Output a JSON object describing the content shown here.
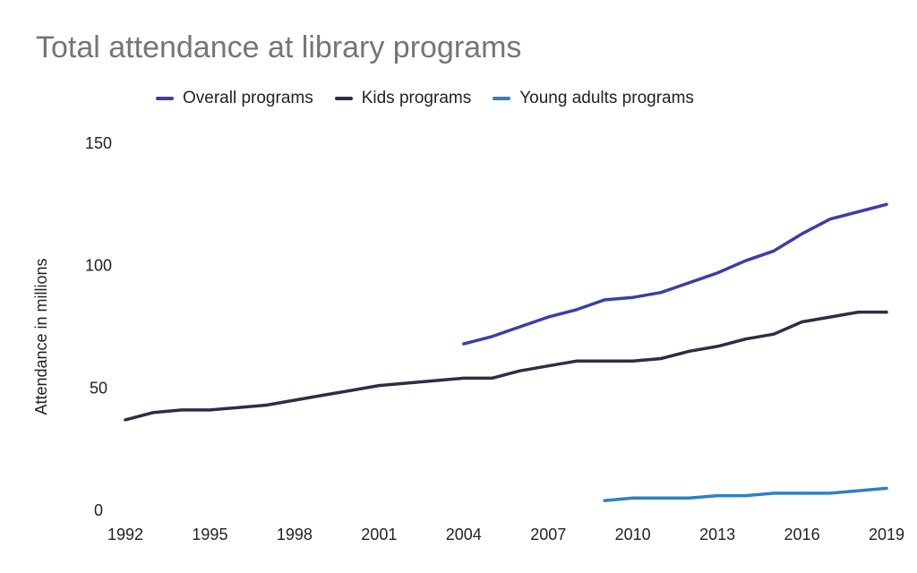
{
  "chart_data": {
    "type": "line",
    "title": "Total attendance at library programs",
    "ylabel": "Attendance in millions",
    "xlabel": "",
    "xlim": [
      1992,
      2019
    ],
    "ylim": [
      0,
      150
    ],
    "x_ticks": [
      1992,
      1995,
      1998,
      2001,
      2004,
      2007,
      2010,
      2013,
      2016,
      2019
    ],
    "y_ticks": [
      0,
      50,
      100,
      150
    ],
    "grid": false,
    "legend_position": "top",
    "series": [
      {
        "name": "Overall programs",
        "color": "#3b3ea8",
        "x": [
          2004,
          2005,
          2006,
          2007,
          2008,
          2009,
          2010,
          2011,
          2012,
          2013,
          2014,
          2015,
          2016,
          2017,
          2018,
          2019
        ],
        "y": [
          68,
          71,
          75,
          79,
          82,
          86,
          87,
          89,
          93,
          97,
          102,
          106,
          113,
          119,
          122,
          125
        ]
      },
      {
        "name": "Kids programs",
        "color": "#2e2d44",
        "x": [
          1992,
          1993,
          1994,
          1995,
          1996,
          1997,
          1998,
          1999,
          2000,
          2001,
          2002,
          2003,
          2004,
          2005,
          2006,
          2007,
          2008,
          2009,
          2010,
          2011,
          2012,
          2013,
          2014,
          2015,
          2016,
          2017,
          2018,
          2019
        ],
        "y": [
          37,
          40,
          41,
          41,
          42,
          43,
          45,
          47,
          49,
          51,
          52,
          53,
          54,
          54,
          57,
          59,
          61,
          61,
          61,
          62,
          65,
          67,
          70,
          72,
          77,
          79,
          81,
          81
        ]
      },
      {
        "name": "Young adults programs",
        "color": "#2f7fc4",
        "x": [
          2009,
          2010,
          2011,
          2012,
          2013,
          2014,
          2015,
          2016,
          2017,
          2018,
          2019
        ],
        "y": [
          4,
          5,
          5,
          5,
          6,
          6,
          7,
          7,
          7,
          8,
          9
        ]
      }
    ]
  }
}
